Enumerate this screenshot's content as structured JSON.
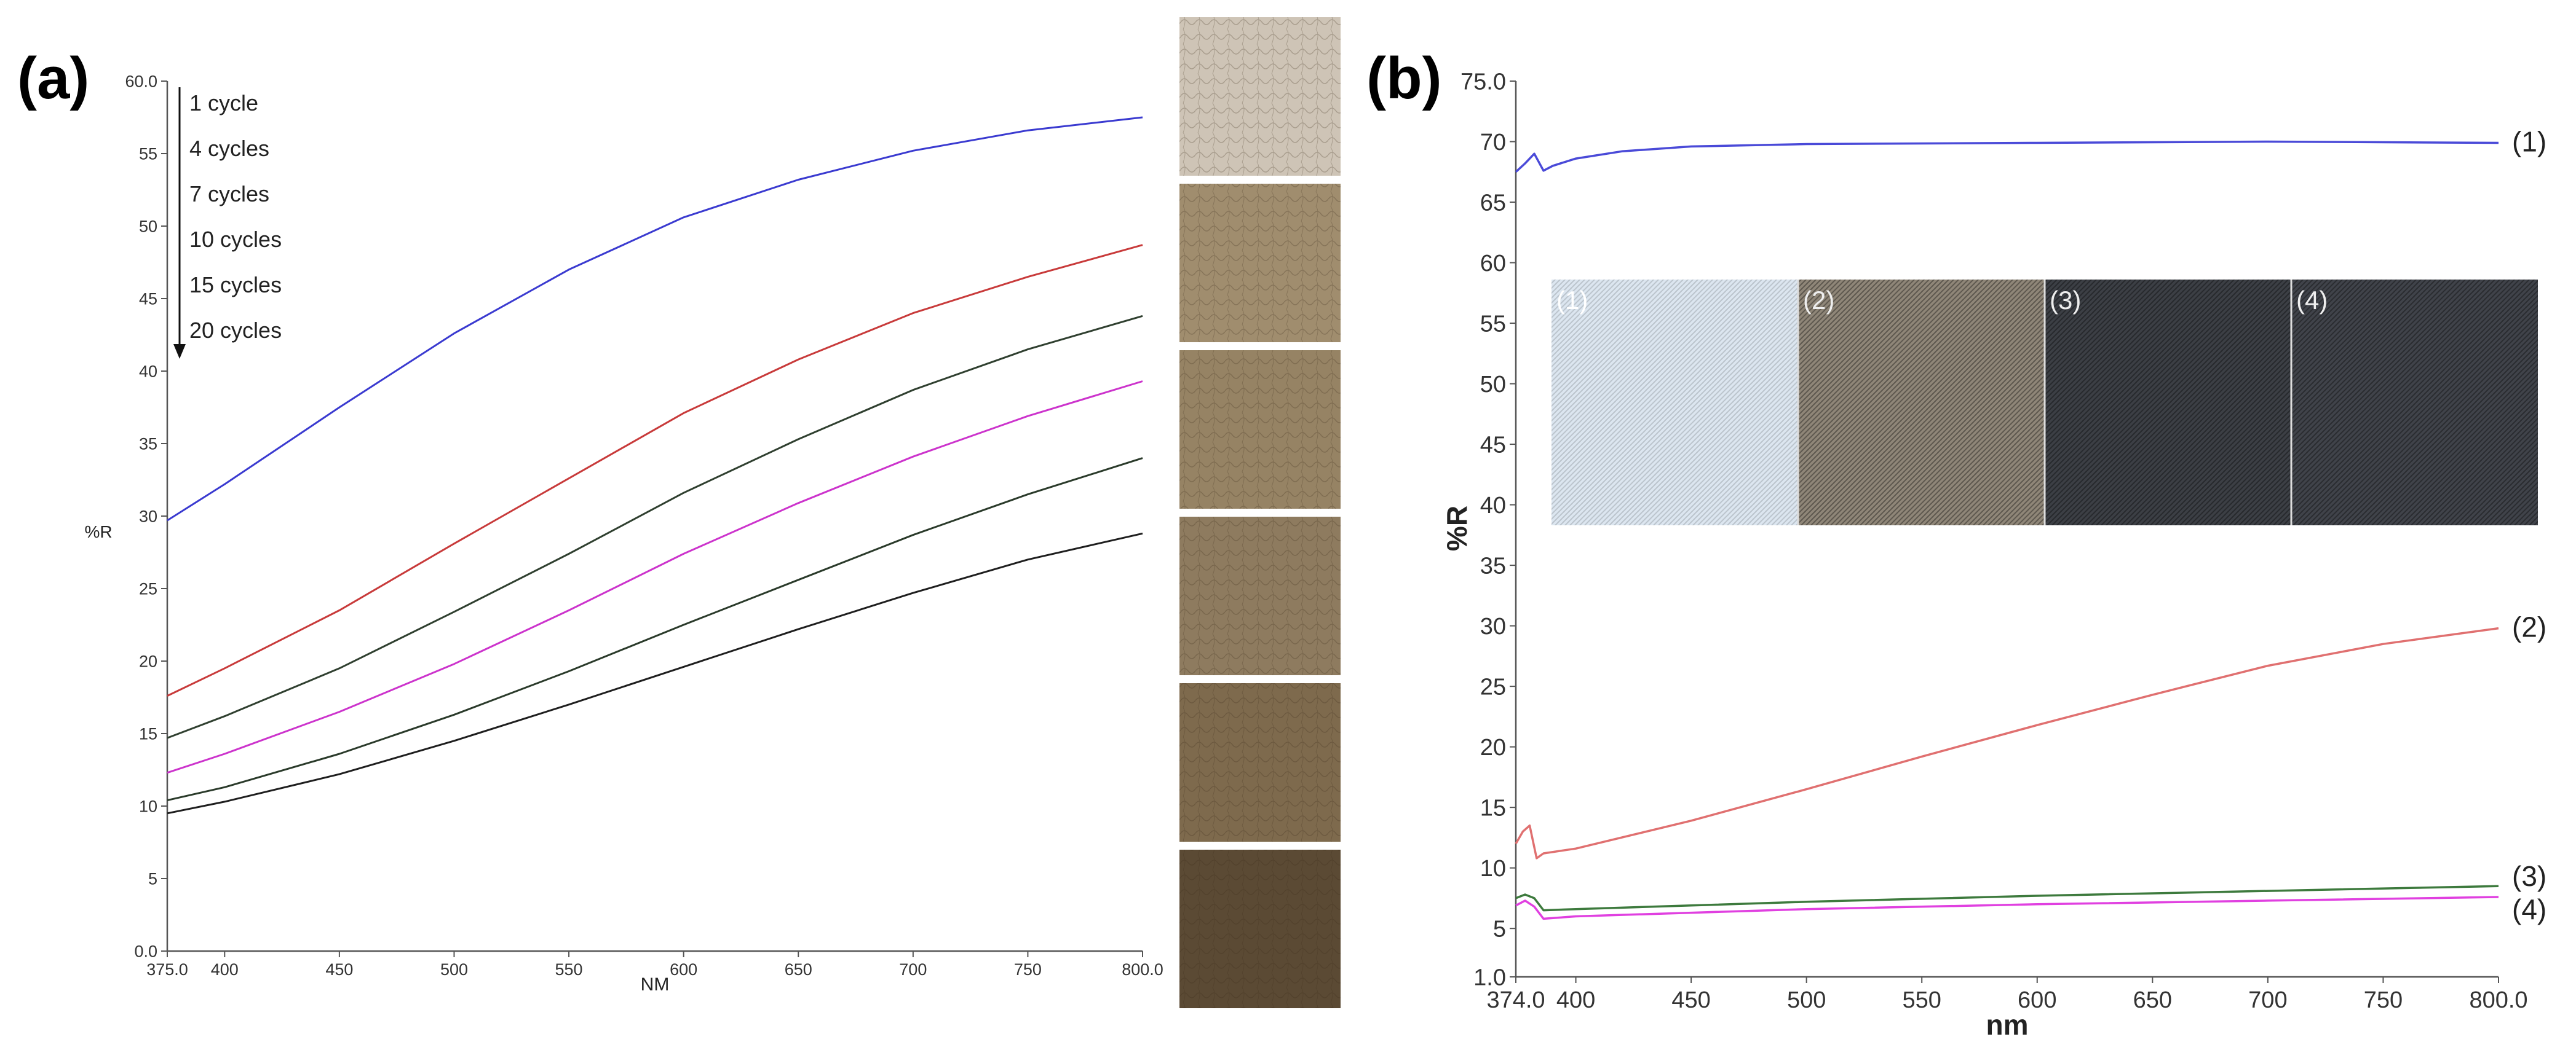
{
  "panels": {
    "a": {
      "label": "(a)"
    },
    "b": {
      "label": "(b)"
    }
  },
  "chart_data": [
    {
      "id": "a",
      "type": "line",
      "xlabel": "NM",
      "ylabel": "%R",
      "xlim": [
        375,
        800
      ],
      "ylim": [
        0,
        60
      ],
      "x_ticks": [
        375,
        400,
        450,
        500,
        550,
        600,
        650,
        700,
        750,
        800
      ],
      "x_tick_labels": [
        "375.0",
        "400",
        "450",
        "500",
        "550",
        "600",
        "650",
        "700",
        "750",
        "800.0"
      ],
      "y_ticks": [
        0,
        5,
        10,
        15,
        20,
        25,
        30,
        35,
        40,
        45,
        50,
        55,
        60
      ],
      "y_tick_labels": [
        "0.0",
        "5",
        "10",
        "15",
        "20",
        "25",
        "30",
        "35",
        "40",
        "45",
        "50",
        "55",
        "60.0"
      ],
      "legend": [
        "1 cycle",
        "4 cycles",
        "7 cycles",
        "10 cycles",
        "15 cycles",
        "20 cycles"
      ],
      "swatch_colors": [
        "#cec4b6",
        "#a08d6e",
        "#968364",
        "#8e7b5f",
        "#7e6a4d",
        "#5b4a34"
      ],
      "series": [
        {
          "name": "1 cycle",
          "color": "#3a3ad0",
          "x": [
            375,
            400,
            450,
            500,
            550,
            600,
            650,
            700,
            750,
            800
          ],
          "values": [
            29.7,
            32.2,
            37.5,
            42.6,
            47.0,
            50.6,
            53.2,
            55.2,
            56.6,
            57.5
          ]
        },
        {
          "name": "4 cycles",
          "color": "#c83a3a",
          "x": [
            375,
            400,
            450,
            500,
            550,
            600,
            650,
            700,
            750,
            800
          ],
          "values": [
            17.6,
            19.5,
            23.5,
            28.1,
            32.6,
            37.1,
            40.8,
            44.0,
            46.5,
            48.7
          ]
        },
        {
          "name": "7 cycles",
          "color": "#2f3f2f",
          "x": [
            375,
            400,
            450,
            500,
            550,
            600,
            650,
            700,
            750,
            800
          ],
          "values": [
            14.7,
            16.2,
            19.5,
            23.4,
            27.4,
            31.6,
            35.3,
            38.7,
            41.5,
            43.8
          ]
        },
        {
          "name": "10 cycles",
          "color": "#cc33cc",
          "x": [
            375,
            400,
            450,
            500,
            550,
            600,
            650,
            700,
            750,
            800
          ],
          "values": [
            12.3,
            13.6,
            16.5,
            19.8,
            23.5,
            27.4,
            30.9,
            34.1,
            36.9,
            39.3
          ]
        },
        {
          "name": "15 cycles",
          "color": "#2a3a2a",
          "x": [
            375,
            400,
            450,
            500,
            550,
            600,
            650,
            700,
            750,
            800
          ],
          "values": [
            10.4,
            11.3,
            13.6,
            16.3,
            19.3,
            22.5,
            25.6,
            28.7,
            31.5,
            34.0
          ]
        },
        {
          "name": "20 cycles",
          "color": "#1e1e1e",
          "x": [
            375,
            400,
            450,
            500,
            550,
            600,
            650,
            700,
            750,
            800
          ],
          "values": [
            9.5,
            10.3,
            12.2,
            14.5,
            17.0,
            19.6,
            22.2,
            24.7,
            27.0,
            28.8
          ]
        }
      ]
    },
    {
      "id": "b",
      "type": "line",
      "xlabel": "nm",
      "ylabel": "%R",
      "xlim": [
        374,
        800
      ],
      "ylim": [
        1,
        75
      ],
      "x_ticks": [
        374,
        400,
        450,
        500,
        550,
        600,
        650,
        700,
        750,
        800
      ],
      "x_tick_labels": [
        "374.0",
        "400",
        "450",
        "500",
        "550",
        "600",
        "650",
        "700",
        "750",
        "800.0"
      ],
      "y_ticks": [
        1,
        5,
        10,
        15,
        20,
        25,
        30,
        35,
        40,
        45,
        50,
        55,
        60,
        65,
        70,
        75
      ],
      "y_tick_labels": [
        "1.0",
        "5",
        "10",
        "15",
        "20",
        "25",
        "30",
        "35",
        "40",
        "45",
        "50",
        "55",
        "60",
        "65",
        "70",
        "75.0"
      ],
      "inset_labels": [
        "(1)",
        "(2)",
        "(3)",
        "(4)"
      ],
      "inset_colors": [
        "#dce6f0",
        "#8f8678",
        "#3c3f45",
        "#40434a"
      ],
      "series": [
        {
          "name": "(1)",
          "color": "#4a4ad8",
          "x": [
            374,
            378,
            382,
            386,
            390,
            400,
            420,
            450,
            500,
            600,
            700,
            800
          ],
          "values": [
            67.5,
            68.2,
            69.0,
            67.6,
            68.0,
            68.6,
            69.2,
            69.6,
            69.8,
            69.9,
            70.0,
            69.9
          ]
        },
        {
          "name": "(2)",
          "color": "#e07070",
          "x": [
            374,
            377,
            380,
            383,
            386,
            400,
            450,
            500,
            550,
            600,
            650,
            700,
            750,
            800
          ],
          "values": [
            12.0,
            13.0,
            13.5,
            10.8,
            11.2,
            11.6,
            13.9,
            16.5,
            19.2,
            21.8,
            24.3,
            26.7,
            28.5,
            29.8
          ]
        },
        {
          "name": "(3)",
          "color": "#3d7a3d",
          "x": [
            374,
            378,
            382,
            386,
            400,
            450,
            500,
            600,
            700,
            800
          ],
          "values": [
            7.5,
            7.8,
            7.5,
            6.5,
            6.6,
            6.9,
            7.2,
            7.7,
            8.1,
            8.5
          ]
        },
        {
          "name": "(4)",
          "color": "#e040e0",
          "x": [
            374,
            378,
            382,
            386,
            400,
            450,
            500,
            600,
            700,
            800
          ],
          "values": [
            6.9,
            7.3,
            6.8,
            5.8,
            6.0,
            6.3,
            6.6,
            7.0,
            7.3,
            7.6
          ]
        }
      ]
    }
  ]
}
